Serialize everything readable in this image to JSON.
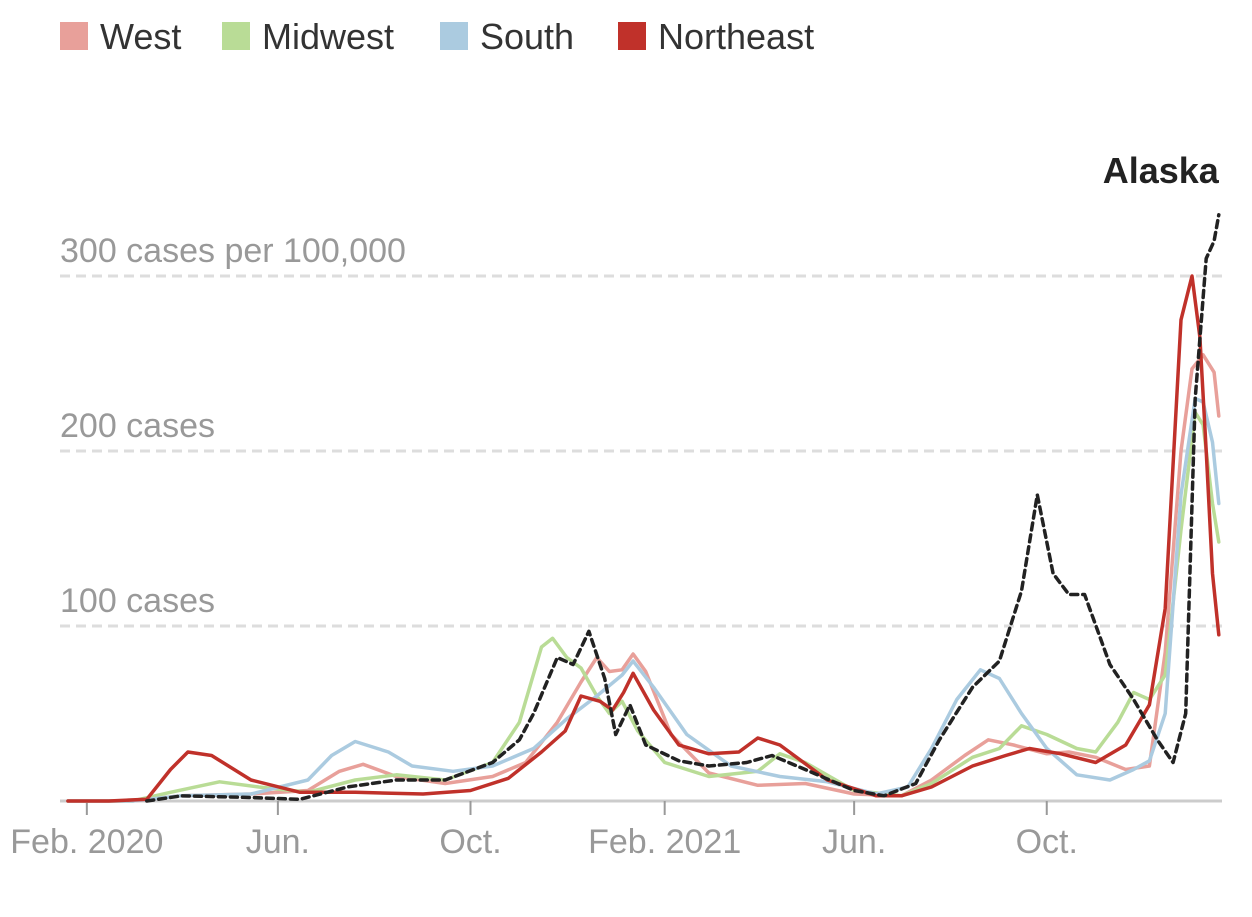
{
  "chart_data": {
    "type": "line",
    "y_unit": "cases per 100,000",
    "ylim": [
      0,
      340
    ],
    "xlim": [
      "2020-01-15",
      "2022-01-20"
    ],
    "y_ticks": [
      {
        "value": 100,
        "label": "100 cases"
      },
      {
        "value": 200,
        "label": "200 cases"
      },
      {
        "value": 300,
        "label": "300 cases per 100,000"
      }
    ],
    "x_ticks": [
      {
        "date": "2020-02-01",
        "label": "Feb. 2020"
      },
      {
        "date": "2020-06-01",
        "label": "Jun."
      },
      {
        "date": "2020-10-01",
        "label": "Oct."
      },
      {
        "date": "2021-02-01",
        "label": "Feb. 2021"
      },
      {
        "date": "2021-06-01",
        "label": "Jun."
      },
      {
        "date": "2021-10-01",
        "label": "Oct."
      }
    ],
    "grid": true,
    "legend_position": "top-left",
    "legend": [
      {
        "key": "west",
        "label": "West",
        "color": "#e8a09a"
      },
      {
        "key": "midwest",
        "label": "Midwest",
        "color": "#b9dc96"
      },
      {
        "key": "south",
        "label": "South",
        "color": "#abcbe0"
      },
      {
        "key": "northeast",
        "label": "Northeast",
        "color": "#c0312a"
      }
    ],
    "annotation": {
      "label": "Alaska",
      "series": "alaska"
    },
    "series": [
      {
        "key": "west",
        "color": "#e8a09a",
        "style": "solid",
        "points": [
          [
            "2020-01-20",
            0
          ],
          [
            "2020-03-01",
            0
          ],
          [
            "2020-04-01",
            3
          ],
          [
            "2020-05-15",
            4
          ],
          [
            "2020-06-20",
            6
          ],
          [
            "2020-07-10",
            17
          ],
          [
            "2020-07-25",
            21
          ],
          [
            "2020-08-15",
            14
          ],
          [
            "2020-09-15",
            10
          ],
          [
            "2020-10-15",
            14
          ],
          [
            "2020-11-05",
            22
          ],
          [
            "2020-11-25",
            45
          ],
          [
            "2020-12-10",
            68
          ],
          [
            "2020-12-20",
            82
          ],
          [
            "2020-12-28",
            74
          ],
          [
            "2021-01-05",
            75
          ],
          [
            "2021-01-12",
            84
          ],
          [
            "2021-01-20",
            74
          ],
          [
            "2021-02-05",
            38
          ],
          [
            "2021-03-01",
            16
          ],
          [
            "2021-04-01",
            9
          ],
          [
            "2021-05-01",
            10
          ],
          [
            "2021-06-01",
            4
          ],
          [
            "2021-07-01",
            3
          ],
          [
            "2021-07-20",
            12
          ],
          [
            "2021-08-10",
            26
          ],
          [
            "2021-08-25",
            35
          ],
          [
            "2021-09-10",
            32
          ],
          [
            "2021-10-01",
            27
          ],
          [
            "2021-10-15",
            28
          ],
          [
            "2021-11-01",
            25
          ],
          [
            "2021-11-20",
            18
          ],
          [
            "2021-12-05",
            20
          ],
          [
            "2021-12-15",
            85
          ],
          [
            "2021-12-25",
            200
          ],
          [
            "2022-01-01",
            247
          ],
          [
            "2022-01-08",
            255
          ],
          [
            "2022-01-15",
            245
          ],
          [
            "2022-01-18",
            220
          ]
        ]
      },
      {
        "key": "midwest",
        "color": "#b9dc96",
        "style": "solid",
        "points": [
          [
            "2020-01-20",
            0
          ],
          [
            "2020-03-01",
            0
          ],
          [
            "2020-03-25",
            5
          ],
          [
            "2020-04-25",
            11
          ],
          [
            "2020-05-20",
            8
          ],
          [
            "2020-06-20",
            5
          ],
          [
            "2020-07-20",
            12
          ],
          [
            "2020-08-15",
            15
          ],
          [
            "2020-09-15",
            12
          ],
          [
            "2020-10-15",
            22
          ],
          [
            "2020-11-01",
            45
          ],
          [
            "2020-11-15",
            88
          ],
          [
            "2020-11-22",
            93
          ],
          [
            "2020-12-01",
            82
          ],
          [
            "2020-12-10",
            76
          ],
          [
            "2020-12-20",
            60
          ],
          [
            "2020-12-28",
            50
          ],
          [
            "2021-01-05",
            57
          ],
          [
            "2021-01-15",
            40
          ],
          [
            "2021-02-01",
            22
          ],
          [
            "2021-03-01",
            14
          ],
          [
            "2021-04-01",
            17
          ],
          [
            "2021-04-15",
            27
          ],
          [
            "2021-05-01",
            22
          ],
          [
            "2021-06-01",
            6
          ],
          [
            "2021-07-01",
            3
          ],
          [
            "2021-07-20",
            10
          ],
          [
            "2021-08-15",
            25
          ],
          [
            "2021-09-01",
            30
          ],
          [
            "2021-09-15",
            43
          ],
          [
            "2021-10-01",
            38
          ],
          [
            "2021-10-20",
            30
          ],
          [
            "2021-11-01",
            28
          ],
          [
            "2021-11-15",
            45
          ],
          [
            "2021-11-25",
            62
          ],
          [
            "2021-12-05",
            58
          ],
          [
            "2021-12-15",
            72
          ],
          [
            "2021-12-25",
            155
          ],
          [
            "2022-01-03",
            222
          ],
          [
            "2022-01-08",
            215
          ],
          [
            "2022-01-14",
            170
          ],
          [
            "2022-01-18",
            148
          ]
        ]
      },
      {
        "key": "south",
        "color": "#abcbe0",
        "style": "solid",
        "points": [
          [
            "2020-01-20",
            0
          ],
          [
            "2020-03-01",
            0
          ],
          [
            "2020-04-01",
            3
          ],
          [
            "2020-05-15",
            4
          ],
          [
            "2020-06-20",
            12
          ],
          [
            "2020-07-05",
            26
          ],
          [
            "2020-07-20",
            34
          ],
          [
            "2020-08-10",
            28
          ],
          [
            "2020-08-25",
            20
          ],
          [
            "2020-09-20",
            17
          ],
          [
            "2020-10-15",
            20
          ],
          [
            "2020-11-10",
            30
          ],
          [
            "2020-12-01",
            47
          ],
          [
            "2020-12-20",
            60
          ],
          [
            "2021-01-05",
            72
          ],
          [
            "2021-01-12",
            80
          ],
          [
            "2021-01-25",
            65
          ],
          [
            "2021-02-15",
            38
          ],
          [
            "2021-03-15",
            20
          ],
          [
            "2021-04-15",
            14
          ],
          [
            "2021-05-15",
            11
          ],
          [
            "2021-06-15",
            4
          ],
          [
            "2021-07-05",
            8
          ],
          [
            "2021-07-20",
            30
          ],
          [
            "2021-08-05",
            58
          ],
          [
            "2021-08-20",
            75
          ],
          [
            "2021-09-01",
            70
          ],
          [
            "2021-09-15",
            50
          ],
          [
            "2021-10-01",
            30
          ],
          [
            "2021-10-20",
            15
          ],
          [
            "2021-11-10",
            12
          ],
          [
            "2021-11-25",
            18
          ],
          [
            "2021-12-05",
            23
          ],
          [
            "2021-12-15",
            50
          ],
          [
            "2021-12-25",
            175
          ],
          [
            "2022-01-03",
            230
          ],
          [
            "2022-01-08",
            228
          ],
          [
            "2022-01-14",
            205
          ],
          [
            "2022-01-18",
            170
          ]
        ]
      },
      {
        "key": "northeast",
        "color": "#c0312a",
        "style": "solid",
        "points": [
          [
            "2020-01-20",
            0
          ],
          [
            "2020-02-15",
            0
          ],
          [
            "2020-03-10",
            1
          ],
          [
            "2020-03-25",
            18
          ],
          [
            "2020-04-05",
            28
          ],
          [
            "2020-04-20",
            26
          ],
          [
            "2020-05-15",
            12
          ],
          [
            "2020-06-15",
            5
          ],
          [
            "2020-07-20",
            5
          ],
          [
            "2020-09-01",
            4
          ],
          [
            "2020-10-01",
            6
          ],
          [
            "2020-10-25",
            13
          ],
          [
            "2020-11-15",
            28
          ],
          [
            "2020-11-30",
            40
          ],
          [
            "2020-12-10",
            60
          ],
          [
            "2020-12-22",
            57
          ],
          [
            "2020-12-30",
            52
          ],
          [
            "2021-01-06",
            62
          ],
          [
            "2021-01-12",
            73
          ],
          [
            "2021-01-25",
            52
          ],
          [
            "2021-02-10",
            32
          ],
          [
            "2021-03-01",
            27
          ],
          [
            "2021-03-20",
            28
          ],
          [
            "2021-04-01",
            36
          ],
          [
            "2021-04-15",
            32
          ],
          [
            "2021-05-15",
            12
          ],
          [
            "2021-06-15",
            3
          ],
          [
            "2021-07-01",
            3
          ],
          [
            "2021-07-20",
            8
          ],
          [
            "2021-08-15",
            20
          ],
          [
            "2021-09-05",
            26
          ],
          [
            "2021-09-20",
            30
          ],
          [
            "2021-10-10",
            27
          ],
          [
            "2021-11-01",
            22
          ],
          [
            "2021-11-20",
            32
          ],
          [
            "2021-12-05",
            55
          ],
          [
            "2021-12-15",
            110
          ],
          [
            "2021-12-25",
            275
          ],
          [
            "2022-01-01",
            300
          ],
          [
            "2022-01-06",
            265
          ],
          [
            "2022-01-10",
            200
          ],
          [
            "2022-01-14",
            130
          ],
          [
            "2022-01-18",
            95
          ]
        ]
      },
      {
        "key": "alaska",
        "color": "#222222",
        "style": "dashed",
        "points": [
          [
            "2020-03-10",
            0
          ],
          [
            "2020-04-01",
            3
          ],
          [
            "2020-05-15",
            2
          ],
          [
            "2020-06-15",
            1
          ],
          [
            "2020-07-15",
            8
          ],
          [
            "2020-08-15",
            12
          ],
          [
            "2020-09-15",
            12
          ],
          [
            "2020-10-15",
            22
          ],
          [
            "2020-11-01",
            35
          ],
          [
            "2020-11-10",
            50
          ],
          [
            "2020-11-25",
            82
          ],
          [
            "2020-12-05",
            78
          ],
          [
            "2020-12-15",
            97
          ],
          [
            "2020-12-25",
            70
          ],
          [
            "2021-01-01",
            38
          ],
          [
            "2021-01-10",
            55
          ],
          [
            "2021-01-20",
            32
          ],
          [
            "2021-02-10",
            23
          ],
          [
            "2021-03-01",
            20
          ],
          [
            "2021-03-25",
            22
          ],
          [
            "2021-04-10",
            26
          ],
          [
            "2021-05-01",
            18
          ],
          [
            "2021-06-01",
            6
          ],
          [
            "2021-06-20",
            3
          ],
          [
            "2021-07-10",
            10
          ],
          [
            "2021-07-25",
            35
          ],
          [
            "2021-08-15",
            65
          ],
          [
            "2021-09-01",
            80
          ],
          [
            "2021-09-15",
            120
          ],
          [
            "2021-09-25",
            175
          ],
          [
            "2021-10-05",
            130
          ],
          [
            "2021-10-15",
            118
          ],
          [
            "2021-10-25",
            118
          ],
          [
            "2021-11-10",
            78
          ],
          [
            "2021-11-25",
            58
          ],
          [
            "2021-12-10",
            35
          ],
          [
            "2021-12-20",
            22
          ],
          [
            "2021-12-28",
            50
          ],
          [
            "2022-01-03",
            230
          ],
          [
            "2022-01-10",
            310
          ],
          [
            "2022-01-15",
            320
          ],
          [
            "2022-01-18",
            335
          ]
        ]
      }
    ]
  }
}
